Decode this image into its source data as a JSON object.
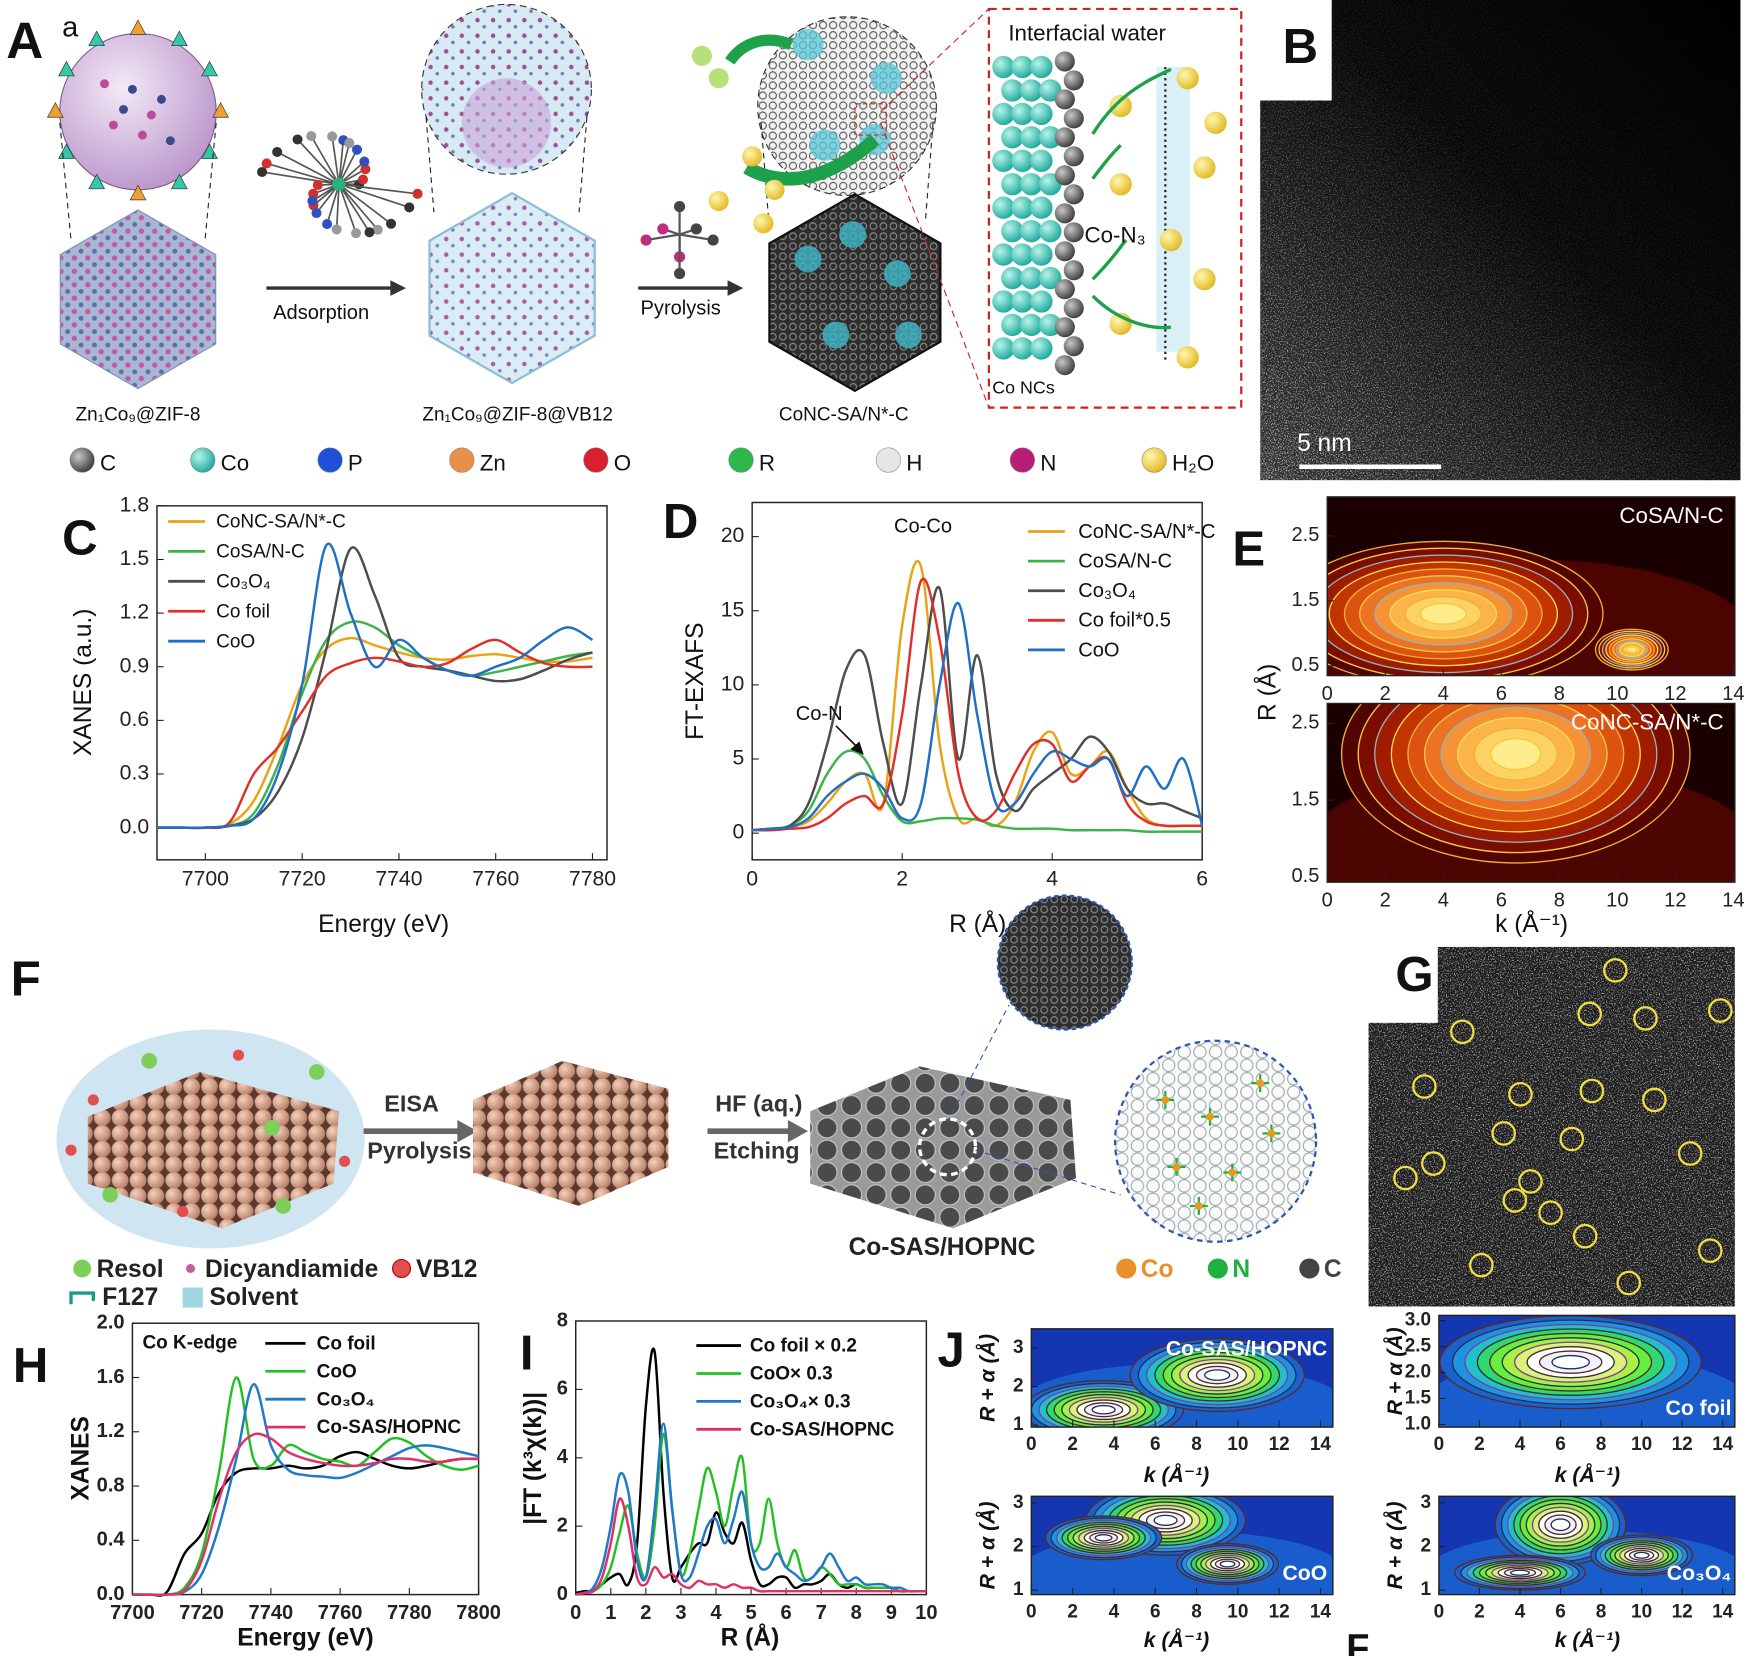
{
  "figure": {
    "A": {
      "label": "A",
      "sublabel": "a",
      "adsorption": "Adsorption",
      "pyrolysis": "Pyrolysis",
      "interfacial_water": "Interfacial water",
      "con3": "Co-N₃",
      "co_ncs": "Co NCs",
      "captions": [
        "Zn₁Co₉@ZIF-8",
        "Zn₁Co₉@ZIF-8@VB12",
        "CoNC-SA/N*-C"
      ],
      "atoms": [
        "C",
        "Co",
        "P",
        "Zn",
        "O",
        "R",
        "H",
        "N",
        "H₂O"
      ]
    },
    "B": {
      "label": "B",
      "scale": "5 nm"
    },
    "F": {
      "label": "F",
      "step1": [
        "EISA",
        "Pyrolysis"
      ],
      "step2": [
        "HF (aq.)",
        "Etching"
      ],
      "product": "Co-SAS/HOPNC",
      "elements": [
        "Co",
        "N",
        "C"
      ],
      "legend": [
        "Resol",
        "Dicyandiamide",
        "VB12",
        "F127",
        "Solvent"
      ]
    },
    "G": {
      "label": "G"
    },
    "cut_label": "F"
  },
  "chart_data": [
    {
      "type": "line",
      "panel": "C",
      "xlabel": "Energy (eV)",
      "ylabel": "XANES (a.u.)",
      "xlim": [
        7690,
        7783
      ],
      "ylim": [
        -0.18,
        1.8
      ],
      "xticks": [
        7700,
        7720,
        7740,
        7760,
        7780
      ],
      "yticks": [
        {
          "value": 0,
          "label": "0.0"
        },
        0.3,
        0.6,
        0.9,
        1.2,
        1.5,
        1.8
      ],
      "x": [
        7690,
        7695,
        7700,
        7705,
        7710,
        7715,
        7720,
        7725,
        7730,
        7735,
        7740,
        7745,
        7750,
        7755,
        7760,
        7765,
        7770,
        7775,
        7780
      ],
      "series": [
        {
          "name": "CoNC-SA/N*-C",
          "color": "#e8a317",
          "values": [
            0,
            0,
            0,
            0.02,
            0.15,
            0.45,
            0.8,
            1.0,
            1.06,
            1.02,
            0.98,
            0.95,
            0.94,
            0.96,
            0.97,
            0.95,
            0.93,
            0.93,
            0.95
          ]
        },
        {
          "name": "CoSA/N-C",
          "color": "#3cb44b",
          "values": [
            0,
            0,
            0,
            0.01,
            0.08,
            0.35,
            0.75,
            1.05,
            1.15,
            1.12,
            1.02,
            0.95,
            0.88,
            0.85,
            0.87,
            0.9,
            0.93,
            0.96,
            0.98
          ]
        },
        {
          "name": "Co₃O₄",
          "color": "#4d4d4d",
          "values": [
            0,
            0,
            0,
            0.01,
            0.05,
            0.2,
            0.5,
            1.0,
            1.56,
            1.3,
            0.95,
            0.9,
            0.88,
            0.85,
            0.82,
            0.83,
            0.88,
            0.94,
            0.98
          ]
        },
        {
          "name": "Co foil",
          "color": "#e0302a",
          "values": [
            0,
            0,
            0,
            0.03,
            0.3,
            0.45,
            0.65,
            0.85,
            0.92,
            0.95,
            0.93,
            0.9,
            0.92,
            1.0,
            1.05,
            0.98,
            0.92,
            0.9,
            0.9
          ]
        },
        {
          "name": "CoO",
          "color": "#1f6fc6",
          "values": [
            0,
            0,
            0,
            0.01,
            0.05,
            0.3,
            0.8,
            1.58,
            1.2,
            0.9,
            1.05,
            0.95,
            0.88,
            0.85,
            0.9,
            0.95,
            1.05,
            1.12,
            1.05
          ]
        }
      ]
    },
    {
      "type": "line",
      "panel": "D",
      "xlabel": "R (Å)",
      "ylabel": "FT-EXAFS",
      "annotations": [
        "Co-Co",
        "Co-N"
      ],
      "xlim": [
        0,
        6
      ],
      "ylim": [
        -1.8,
        22.3
      ],
      "xticks": [
        0,
        2,
        4,
        6
      ],
      "yticks": [
        0,
        5,
        10,
        15,
        20
      ],
      "x": [
        0,
        0.25,
        0.5,
        0.75,
        1,
        1.25,
        1.5,
        1.75,
        2,
        2.25,
        2.5,
        2.75,
        3,
        3.25,
        3.5,
        3.75,
        4,
        4.25,
        4.5,
        4.75,
        5,
        5.25,
        5.5,
        5.75,
        6
      ],
      "series": [
        {
          "name": "CoNC-SA/N*-C",
          "color": "#e8a317",
          "values": [
            0.2,
            0.3,
            0.4,
            0.8,
            2,
            3.5,
            4,
            2,
            14,
            18,
            6,
            1,
            1,
            0.5,
            2,
            5.5,
            6.8,
            4,
            4.5,
            5.5,
            3,
            1,
            0.5,
            0.5,
            0.5
          ]
        },
        {
          "name": "CoSA/N-C",
          "color": "#3cb44b",
          "values": [
            0.2,
            0.3,
            0.5,
            1.5,
            4,
            5.5,
            5,
            2.5,
            0.8,
            0.8,
            1,
            1,
            0.9,
            0.5,
            0.3,
            0.3,
            0.3,
            0.2,
            0.2,
            0.2,
            0.2,
            0.1,
            0.1,
            0.1,
            0.1
          ]
        },
        {
          "name": "Co₃O₄",
          "color": "#4d4d4d",
          "values": [
            0.2,
            0.3,
            0.5,
            2,
            6,
            11,
            12,
            6,
            2,
            10,
            16.5,
            5,
            12,
            4,
            1.5,
            3,
            4,
            5,
            6.5,
            5.5,
            3,
            2,
            2,
            1.5,
            1
          ]
        },
        {
          "name": "Co foil*0.5",
          "color": "#e0302a",
          "values": [
            0.2,
            0.2,
            0.3,
            0.4,
            1,
            2,
            2.5,
            2,
            8,
            17,
            13,
            4,
            1,
            1.5,
            4,
            6,
            6,
            3.5,
            4.5,
            5,
            2,
            0.8,
            0.5,
            0.5,
            0.5
          ]
        },
        {
          "name": "CoO",
          "color": "#1f6fc6",
          "values": [
            0.2,
            0.3,
            0.4,
            1,
            2.5,
            3.5,
            4,
            3,
            1,
            2,
            10,
            15.5,
            8,
            2,
            2,
            4,
            5.5,
            5,
            4.5,
            5,
            2.5,
            4.5,
            3,
            5,
            0.5
          ]
        }
      ]
    },
    {
      "type": "contour",
      "panel": "E",
      "title": "CoSA/N-C",
      "ylabel": "R (Å)",
      "xlim": [
        0,
        14.05
      ],
      "ylim": [
        0.35,
        3.1
      ],
      "xticks": [
        0,
        2,
        4,
        6,
        8,
        10,
        12,
        14
      ],
      "yticks": [
        0.5,
        1.5,
        2.5
      ]
    },
    {
      "type": "contour",
      "title": "CoNC-SA/N*-C",
      "xlabel": "k (Å⁻¹)",
      "xlim": [
        0,
        14.05
      ],
      "ylim": [
        0.43,
        2.76
      ],
      "xticks": [
        0,
        2,
        4,
        6,
        8,
        10,
        12,
        14
      ],
      "yticks": [
        0.5,
        1.5,
        2.5
      ]
    },
    {
      "type": "line",
      "panel": "H",
      "xlabel": "Energy (eV)",
      "ylabel": "XANES",
      "annotations": [
        "Co K-edge"
      ],
      "xlim": [
        7700,
        7800
      ],
      "ylim": [
        0,
        2
      ],
      "xticks": [
        7700,
        7720,
        7740,
        7760,
        7780,
        7800
      ],
      "yticks": [
        {
          "value": 0,
          "label": "0.0"
        },
        0.4,
        0.8,
        1.2,
        1.6,
        {
          "value": 2,
          "label": "2.0"
        }
      ],
      "x": [
        7700,
        7705,
        7710,
        7715,
        7720,
        7725,
        7730,
        7735,
        7740,
        7745,
        7750,
        7755,
        7760,
        7765,
        7770,
        7775,
        7780,
        7785,
        7790,
        7795,
        7800
      ],
      "series": [
        {
          "name": "Co foil",
          "color": "#000000",
          "values": [
            0,
            0,
            0.02,
            0.3,
            0.45,
            0.75,
            0.9,
            0.93,
            0.93,
            0.95,
            0.93,
            0.95,
            1.02,
            1.05,
            1.0,
            0.95,
            0.93,
            0.95,
            0.98,
            1.0,
            1.0
          ]
        },
        {
          "name": "CoO",
          "color": "#22c022",
          "values": [
            0,
            0,
            0,
            0.05,
            0.3,
            0.9,
            1.6,
            1.0,
            0.95,
            1.1,
            1.05,
            1.0,
            0.98,
            0.95,
            1.05,
            1.15,
            1.12,
            1.02,
            0.95,
            0.92,
            0.95
          ]
        },
        {
          "name": "Co₃O₄",
          "color": "#1f78c8",
          "values": [
            0,
            0,
            0,
            0.02,
            0.15,
            0.5,
            1.0,
            1.55,
            1.1,
            0.92,
            0.88,
            0.87,
            0.86,
            0.9,
            0.96,
            1.02,
            1.08,
            1.1,
            1.08,
            1.05,
            1.02
          ]
        },
        {
          "name": "Co-SAS/HOPNC",
          "color": "#e0306a",
          "values": [
            0,
            0,
            0,
            0.03,
            0.25,
            0.7,
            1.05,
            1.18,
            1.15,
            1.05,
            1.0,
            0.97,
            0.95,
            0.95,
            0.97,
            1.0,
            1.0,
            0.98,
            0.98,
            1.0,
            1.0
          ]
        }
      ]
    },
    {
      "type": "line",
      "panel": "I",
      "xlabel": "R (Å)",
      "ylabel": "|FT (k³χ(k))|",
      "xlim": [
        0,
        10
      ],
      "ylim": [
        0,
        8
      ],
      "xticks": [
        0,
        1,
        2,
        3,
        4,
        5,
        6,
        7,
        8,
        9,
        10
      ],
      "yticks": [
        0,
        2,
        4,
        6,
        8
      ],
      "x": [
        0,
        0.25,
        0.5,
        0.75,
        1,
        1.25,
        1.5,
        1.75,
        2,
        2.25,
        2.5,
        2.75,
        3,
        3.25,
        3.5,
        3.75,
        4,
        4.25,
        4.5,
        4.75,
        5,
        5.25,
        5.5,
        5.75,
        6,
        6.25,
        6.5,
        6.75,
        7,
        7.25,
        7.5,
        7.75,
        8,
        8.25,
        8.5,
        8.75,
        9,
        9.25,
        9.5,
        9.75,
        10
      ],
      "series": [
        {
          "name": "Co foil × 0.2",
          "color": "#000000",
          "values": [
            0.05,
            0.1,
            0.1,
            0.3,
            0.5,
            0.6,
            0.3,
            1.5,
            5.5,
            7.1,
            3,
            0.5,
            0.8,
            1.2,
            1.5,
            1.5,
            2.4,
            1.8,
            1.5,
            2.1,
            1,
            0.3,
            0.3,
            0.5,
            0.5,
            0.2,
            0.3,
            0.3,
            0.4,
            0.6,
            0.3,
            0.2,
            0.3,
            0.2,
            0.2,
            0.2,
            0.2,
            0.1,
            0.1,
            0.1,
            0.1
          ]
        },
        {
          "name": "CoO× 0.3",
          "color": "#22c022",
          "values": [
            0,
            0.05,
            0.1,
            0.3,
            0.8,
            1.8,
            2.6,
            1.2,
            0.5,
            2,
            4.7,
            2.5,
            0.6,
            1.2,
            2.5,
            3.7,
            3,
            2,
            3.2,
            4,
            1.5,
            1.5,
            2.8,
            1.5,
            0.8,
            1.3,
            0.5,
            0.5,
            0.8,
            0.6,
            0.3,
            0.3,
            0.3,
            0.2,
            0.2,
            0.2,
            0.2,
            0.1,
            0.1,
            0.1,
            0.1
          ]
        },
        {
          "name": "Co₃O₄× 0.3",
          "color": "#1f78c8",
          "values": [
            0,
            0.05,
            0.2,
            0.8,
            2,
            3.5,
            3,
            1,
            0.5,
            2.5,
            5,
            2.5,
            0.6,
            0.5,
            1.2,
            2,
            2.2,
            1.5,
            2.2,
            3,
            1.5,
            0.8,
            0.8,
            1.2,
            0.8,
            0.6,
            0.4,
            0.5,
            0.8,
            1.2,
            0.8,
            0.4,
            0.5,
            0.3,
            0.3,
            0.3,
            0.2,
            0.2,
            0.1,
            0.1,
            0.1
          ]
        },
        {
          "name": "Co-SAS/HOPNC",
          "color": "#e0306a",
          "values": [
            0,
            0.05,
            0.1,
            0.5,
            1.5,
            2.8,
            2,
            0.5,
            0.3,
            0.8,
            0.5,
            0.6,
            0.3,
            0.2,
            0.4,
            0.3,
            0.3,
            0.2,
            0.3,
            0.2,
            0.2,
            0.1,
            0.1,
            0.1,
            0.1,
            0.1,
            0.1,
            0.1,
            0.1,
            0.1,
            0.1,
            0.1,
            0.1,
            0.1,
            0.1,
            0.1,
            0.1,
            0.1,
            0.1,
            0.1,
            0.1
          ]
        }
      ]
    },
    {
      "type": "contour",
      "panel": "J",
      "title": "Co-SAS/HOPNC",
      "xlabel": "k (Å⁻¹)",
      "ylabel": "R + α (Å)",
      "xlim": [
        0,
        14.6
      ],
      "ylim": [
        0.95,
        3.5
      ],
      "xticks": [
        0,
        2,
        4,
        6,
        8,
        10,
        12,
        14
      ],
      "yticks": [
        1,
        2,
        3
      ]
    },
    {
      "type": "contour",
      "title": "Co foil",
      "xlabel": "k (Å⁻¹)",
      "ylabel": "R + α (Å)",
      "xlim": [
        0,
        14.6
      ],
      "ylim": [
        0.95,
        3.1
      ],
      "xticks": [
        0,
        2,
        4,
        6,
        8,
        10,
        12,
        14
      ],
      "yticks": [
        {
          "value": 1,
          "label": "1.0"
        },
        1.5,
        {
          "value": 2,
          "label": "2.0"
        },
        2.5,
        {
          "value": 3,
          "label": "3.0"
        }
      ]
    },
    {
      "type": "contour",
      "title": "CoO",
      "xlabel": "k (Å⁻¹)",
      "ylabel": "R + α (Å)",
      "xlim": [
        0,
        14.6
      ],
      "ylim": [
        0.9,
        3.15
      ],
      "xticks": [
        0,
        2,
        4,
        6,
        8,
        10,
        12,
        14
      ],
      "yticks": [
        1,
        2,
        3
      ]
    },
    {
      "type": "contour",
      "title": "Co₃O₄",
      "xlabel": "k (Å⁻¹)",
      "ylabel": "R + α (Å)",
      "xlim": [
        0,
        14.6
      ],
      "ylim": [
        0.9,
        3.15
      ],
      "xticks": [
        0,
        2,
        4,
        6,
        8,
        10,
        12,
        14
      ],
      "yticks": [
        1,
        2,
        3
      ]
    }
  ]
}
